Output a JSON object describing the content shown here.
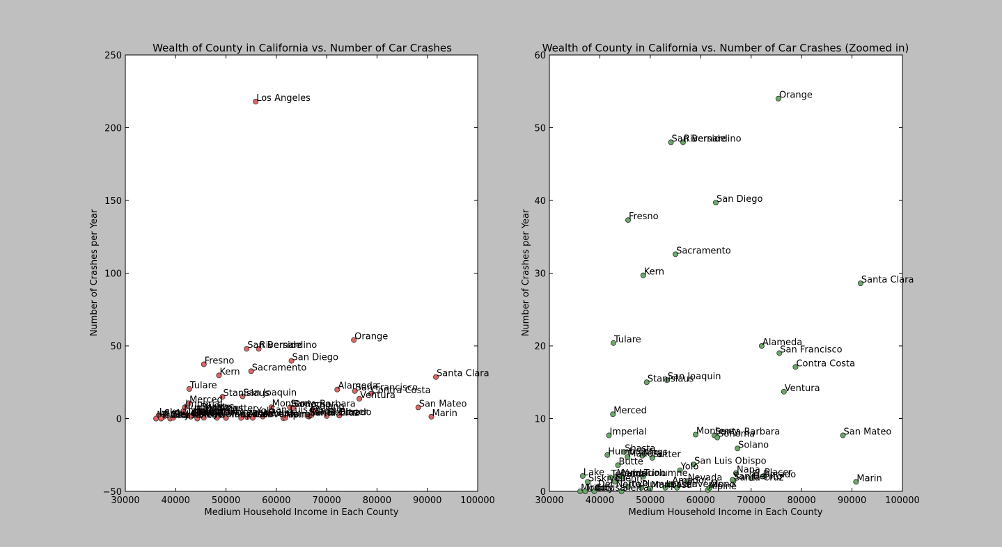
{
  "chart_data": [
    {
      "type": "scatter",
      "title": "Wealth of County in California vs. Number of Car Crashes",
      "xlabel": "Medium Household Income in Each County",
      "ylabel": "Number of Crashes per Year",
      "xlim": [
        30000,
        100000
      ],
      "ylim": [
        -50,
        250
      ],
      "xticks": [
        "30000",
        "40000",
        "50000",
        "60000",
        "70000",
        "80000",
        "90000",
        "100000"
      ],
      "yticks": [
        "−50",
        "0",
        "50",
        "100",
        "150",
        "200",
        "250"
      ],
      "grid": false,
      "point_color": "#e06666",
      "points": [
        {
          "label": "Los Angeles",
          "x": 55900,
          "y": 218
        },
        {
          "label": "Orange",
          "x": 75400,
          "y": 54
        },
        {
          "label": "San Bernardino",
          "x": 54100,
          "y": 48
        },
        {
          "label": "Riverside",
          "x": 56500,
          "y": 48
        },
        {
          "label": "San Diego",
          "x": 63000,
          "y": 39.7
        },
        {
          "label": "Fresno",
          "x": 45600,
          "y": 37.3
        },
        {
          "label": "Sacramento",
          "x": 55000,
          "y": 32.6
        },
        {
          "label": "Kern",
          "x": 48600,
          "y": 29.7
        },
        {
          "label": "Santa Clara",
          "x": 91700,
          "y": 28.6
        },
        {
          "label": "Tulare",
          "x": 42700,
          "y": 20.4
        },
        {
          "label": "Alameda",
          "x": 72100,
          "y": 20
        },
        {
          "label": "San Francisco",
          "x": 75600,
          "y": 19
        },
        {
          "label": "Contra Costa",
          "x": 78800,
          "y": 17.1
        },
        {
          "label": "Stanislaus",
          "x": 49300,
          "y": 15
        },
        {
          "label": "San Joaquin",
          "x": 53300,
          "y": 15.3
        },
        {
          "label": "Ventura",
          "x": 76500,
          "y": 13.7
        },
        {
          "label": "Merced",
          "x": 42600,
          "y": 10.6
        },
        {
          "label": "San Mateo",
          "x": 88200,
          "y": 7.7
        },
        {
          "label": "Imperial",
          "x": 41800,
          "y": 7.7
        },
        {
          "label": "Monterey",
          "x": 59000,
          "y": 7.8
        },
        {
          "label": "Santa Barbara",
          "x": 62700,
          "y": 7.7
        },
        {
          "label": "Sonoma",
          "x": 63300,
          "y": 7.4
        },
        {
          "label": "Solano",
          "x": 67300,
          "y": 5.9
        },
        {
          "label": "Shasta",
          "x": 44800,
          "y": 5.4
        },
        {
          "label": "Humboldt",
          "x": 41500,
          "y": 5
        },
        {
          "label": "Madera",
          "x": 45500,
          "y": 4.7
        },
        {
          "label": "Kings",
          "x": 48400,
          "y": 4.9
        },
        {
          "label": "Sutter",
          "x": 50400,
          "y": 4.6
        },
        {
          "label": "Butte",
          "x": 43600,
          "y": 3.6
        },
        {
          "label": "San Luis Obispo",
          "x": 58600,
          "y": 3.7
        },
        {
          "label": "Yolo",
          "x": 55900,
          "y": 2.9
        },
        {
          "label": "Lake",
          "x": 36600,
          "y": 2.1
        },
        {
          "label": "Tehama",
          "x": 42100,
          "y": 1.9
        },
        {
          "label": "Mendocino",
          "x": 43200,
          "y": 2
        },
        {
          "label": "Yuba",
          "x": 44400,
          "y": 2
        },
        {
          "label": "Tuolumne",
          "x": 48600,
          "y": 2
        },
        {
          "label": "El Dorado",
          "x": 70000,
          "y": 1.8
        },
        {
          "label": "Placer",
          "x": 72500,
          "y": 2.1
        },
        {
          "label": "Santa Cruz",
          "x": 66500,
          "y": 1.4
        },
        {
          "label": "San Benito",
          "x": 66300,
          "y": 1.6
        },
        {
          "label": "Nevada",
          "x": 57300,
          "y": 1.4
        },
        {
          "label": "Amador",
          "x": 54200,
          "y": 1
        },
        {
          "label": "Siskiyou",
          "x": 37600,
          "y": 1.3
        },
        {
          "label": "Glenn",
          "x": 43000,
          "y": 1.3
        },
        {
          "label": "Marin",
          "x": 90800,
          "y": 1.3
        },
        {
          "label": "Inyo",
          "x": 45600,
          "y": 0.6
        },
        {
          "label": "Plumas",
          "x": 48200,
          "y": 0.5
        },
        {
          "label": "Mariposa",
          "x": 50000,
          "y": 0.4
        },
        {
          "label": "Lassen",
          "x": 53000,
          "y": 0.5
        },
        {
          "label": "Calaveras",
          "x": 55300,
          "y": 0.5
        },
        {
          "label": "Alpine",
          "x": 61400,
          "y": 0.2
        },
        {
          "label": "Mono",
          "x": 61800,
          "y": 0.5
        },
        {
          "label": "Modoc",
          "x": 36100,
          "y": 0
        },
        {
          "label": "Trinity",
          "x": 37100,
          "y": 0
        },
        {
          "label": "Colusa",
          "x": 38900,
          "y": 0
        },
        {
          "label": "Sierra",
          "x": 44300,
          "y": 0
        },
        {
          "label": "Del Norte",
          "x": 39500,
          "y": 0.5
        },
        {
          "label": "Napa",
          "x": 67000,
          "y": 2.5
        }
      ]
    },
    {
      "type": "scatter",
      "title": "Wealth of County in California vs. Number of Car Crashes (Zoomed in)",
      "xlabel": "Medium Household Income in Each County",
      "ylabel": "Number of Crashes per Year",
      "xlim": [
        30000,
        100000
      ],
      "ylim": [
        0,
        60
      ],
      "xticks": [
        "30000",
        "40000",
        "50000",
        "60000",
        "70000",
        "80000",
        "90000",
        "100000"
      ],
      "yticks": [
        "0",
        "10",
        "20",
        "30",
        "40",
        "50",
        "60"
      ],
      "grid": false,
      "point_color": "#6aa86a",
      "points": [
        {
          "label": "Orange",
          "x": 75400,
          "y": 54
        },
        {
          "label": "San Bernardino",
          "x": 54100,
          "y": 48
        },
        {
          "label": "Riverside",
          "x": 56500,
          "y": 48
        },
        {
          "label": "San Diego",
          "x": 63000,
          "y": 39.7
        },
        {
          "label": "Fresno",
          "x": 45600,
          "y": 37.3
        },
        {
          "label": "Sacramento",
          "x": 55000,
          "y": 32.6
        },
        {
          "label": "Kern",
          "x": 48600,
          "y": 29.7
        },
        {
          "label": "Santa Clara",
          "x": 91700,
          "y": 28.6
        },
        {
          "label": "Tulare",
          "x": 42700,
          "y": 20.4
        },
        {
          "label": "Alameda",
          "x": 72100,
          "y": 20
        },
        {
          "label": "San Francisco",
          "x": 75600,
          "y": 19
        },
        {
          "label": "Contra Costa",
          "x": 78800,
          "y": 17.1
        },
        {
          "label": "Stanislaus",
          "x": 49300,
          "y": 15
        },
        {
          "label": "San Joaquin",
          "x": 53300,
          "y": 15.3
        },
        {
          "label": "Ventura",
          "x": 76500,
          "y": 13.7
        },
        {
          "label": "Merced",
          "x": 42600,
          "y": 10.6
        },
        {
          "label": "San Mateo",
          "x": 88200,
          "y": 7.7
        },
        {
          "label": "Imperial",
          "x": 41800,
          "y": 7.7
        },
        {
          "label": "Monterey",
          "x": 59000,
          "y": 7.8
        },
        {
          "label": "Santa Barbara",
          "x": 62700,
          "y": 7.7
        },
        {
          "label": "Sonoma",
          "x": 63300,
          "y": 7.4
        },
        {
          "label": "Solano",
          "x": 67300,
          "y": 5.9
        },
        {
          "label": "Shasta",
          "x": 44800,
          "y": 5.4
        },
        {
          "label": "Humboldt",
          "x": 41500,
          "y": 5
        },
        {
          "label": "Madera",
          "x": 45500,
          "y": 4.7
        },
        {
          "label": "Kings",
          "x": 48400,
          "y": 4.9
        },
        {
          "label": "Sutter",
          "x": 50400,
          "y": 4.6
        },
        {
          "label": "Butte",
          "x": 43600,
          "y": 3.6
        },
        {
          "label": "San Luis Obispo",
          "x": 58600,
          "y": 3.7
        },
        {
          "label": "Yolo",
          "x": 55900,
          "y": 2.9
        },
        {
          "label": "Lake",
          "x": 36600,
          "y": 2.1
        },
        {
          "label": "Tehama",
          "x": 42100,
          "y": 1.9
        },
        {
          "label": "Mendocino",
          "x": 43200,
          "y": 2
        },
        {
          "label": "Yuba",
          "x": 44400,
          "y": 2
        },
        {
          "label": "Tuolumne",
          "x": 48600,
          "y": 2
        },
        {
          "label": "El Dorado",
          "x": 70000,
          "y": 1.8
        },
        {
          "label": "Placer",
          "x": 72500,
          "y": 2.1
        },
        {
          "label": "Santa Cruz",
          "x": 66500,
          "y": 1.4
        },
        {
          "label": "San Benito",
          "x": 66300,
          "y": 1.6
        },
        {
          "label": "Nevada",
          "x": 57300,
          "y": 1.4
        },
        {
          "label": "Amador",
          "x": 54200,
          "y": 1
        },
        {
          "label": "Siskiyou",
          "x": 37600,
          "y": 1.3
        },
        {
          "label": "Glenn",
          "x": 43000,
          "y": 1.3
        },
        {
          "label": "Marin",
          "x": 90800,
          "y": 1.3
        },
        {
          "label": "Inyo",
          "x": 45600,
          "y": 0.6
        },
        {
          "label": "Plumas",
          "x": 48200,
          "y": 0.5
        },
        {
          "label": "Mariposa",
          "x": 50000,
          "y": 0.4
        },
        {
          "label": "Lassen",
          "x": 53000,
          "y": 0.5
        },
        {
          "label": "Calaveras",
          "x": 55300,
          "y": 0.5
        },
        {
          "label": "Alpine",
          "x": 61400,
          "y": 0.2
        },
        {
          "label": "Mono",
          "x": 61800,
          "y": 0.5
        },
        {
          "label": "Modoc",
          "x": 36100,
          "y": 0
        },
        {
          "label": "Trinity",
          "x": 37100,
          "y": 0
        },
        {
          "label": "Colusa",
          "x": 38900,
          "y": 0
        },
        {
          "label": "Sierra",
          "x": 44300,
          "y": 0
        },
        {
          "label": "Del Norte",
          "x": 39500,
          "y": 0.5
        },
        {
          "label": "Napa",
          "x": 67000,
          "y": 2.5
        }
      ]
    }
  ]
}
